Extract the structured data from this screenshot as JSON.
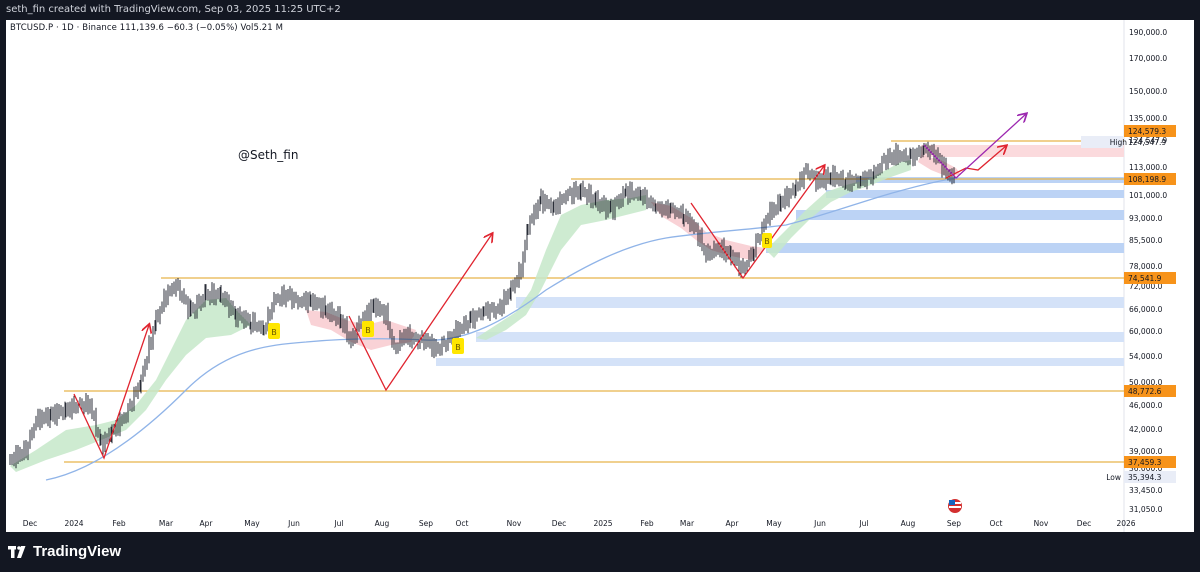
{
  "header": {
    "attribution": "seth_fin created with TradingView.com, Sep 03, 2025 11:25 UTC+2"
  },
  "chart": {
    "symbol_info": "BTCUSD.P · 1D · Binance  111,139.6  −60.3 (−0.05%)  Vol5.21 M",
    "watermark": "@Seth_fin",
    "price_axis": [
      "190,000.0",
      "170,000.0",
      "150,000.0",
      "135,000.0",
      "124,547.9",
      "113,000.0",
      "101,000.0",
      "93,000.0",
      "85,500.0",
      "78,000.0",
      "72,000.0",
      "66,000.0",
      "60,000.0",
      "54,000.0",
      "50,000.0",
      "46,000.0",
      "42,000.0",
      "39,000.0",
      "36,000.0",
      "33,450.0",
      "31,050.0"
    ],
    "time_axis": [
      "Dec",
      "2024",
      "Feb",
      "Mar",
      "Apr",
      "May",
      "Jun",
      "Jul",
      "Aug",
      "Sep",
      "Oct",
      "Nov",
      "Dec",
      "2025",
      "Feb",
      "Mar",
      "Apr",
      "May",
      "Jun",
      "Jul",
      "Aug",
      "Sep",
      "Oct",
      "Nov",
      "Dec",
      "2026"
    ],
    "price_tags": [
      {
        "text": "124,579.3",
        "color": "#f7931a"
      },
      {
        "text": "108,198.9",
        "color": "#f7931a"
      },
      {
        "text": "74,541.9",
        "color": "#f7931a"
      },
      {
        "text": "48,772.6",
        "color": "#f7931a"
      },
      {
        "text": "37,459.3",
        "color": "#f7931a"
      }
    ],
    "high_label": "High",
    "high_value": "124,547.9",
    "low_label": "Low",
    "low_value": "35,394.3",
    "signal_label": "B",
    "colors": {
      "accent_orange": "#f7931a",
      "support_line": "#e6b34a",
      "zone_blue": "#bcd3f5",
      "zone_red": "#f7c7cc",
      "arrow_red": "#e0242f",
      "arrow_purple": "#9c27b0",
      "ma_line": "#90b4e8",
      "ribbon_green": "#c6e8c9",
      "signal_yellow": "#ffe600"
    }
  },
  "footer": {
    "brand": "TradingView"
  }
}
